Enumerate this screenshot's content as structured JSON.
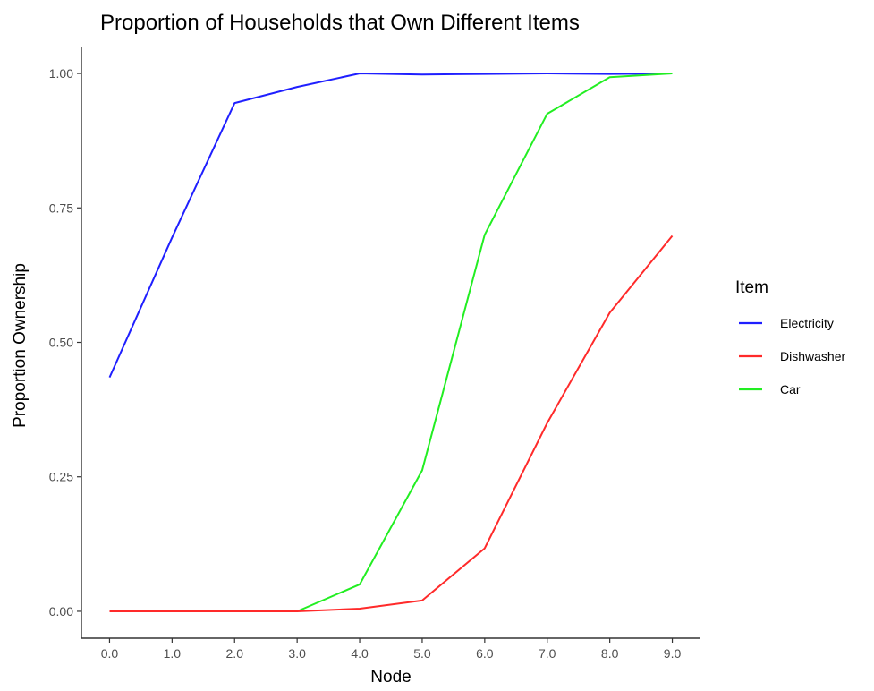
{
  "chart_data": {
    "type": "line",
    "title": "Proportion of Households that Own Different Items",
    "xlabel": "Node",
    "ylabel": "Proportion Ownership",
    "x": [
      0,
      1,
      2,
      3,
      4,
      5,
      6,
      7,
      8,
      9
    ],
    "x_tick_labels": [
      "0.0",
      "1.0",
      "2.0",
      "3.0",
      "4.0",
      "5.0",
      "6.0",
      "7.0",
      "8.0",
      "9.0"
    ],
    "y_ticks": [
      0,
      0.25,
      0.5,
      0.75,
      1
    ],
    "y_tick_labels": [
      "0.00",
      "0.25",
      "0.50",
      "0.75",
      "1.00"
    ],
    "xlim": [
      -0.45,
      9.45
    ],
    "ylim": [
      -0.05,
      1.05
    ],
    "grid": false,
    "legend_title": "Item",
    "legend_position": "right",
    "series": [
      {
        "name": "Electricity",
        "color": "#1f1fff",
        "values": [
          0.435,
          0.695,
          0.945,
          0.975,
          1.0,
          0.998,
          0.999,
          1.0,
          0.999,
          1.0
        ]
      },
      {
        "name": "Dishwasher",
        "color": "#ff2a2a",
        "values": [
          0.0,
          0.0,
          0.0,
          0.0,
          0.005,
          0.02,
          0.117,
          0.35,
          0.555,
          0.698
        ]
      },
      {
        "name": "Car",
        "color": "#22ee22",
        "values": [
          0.0,
          0.0,
          0.0,
          0.0,
          0.05,
          0.262,
          0.7,
          0.925,
          0.993,
          1.0
        ]
      }
    ]
  }
}
